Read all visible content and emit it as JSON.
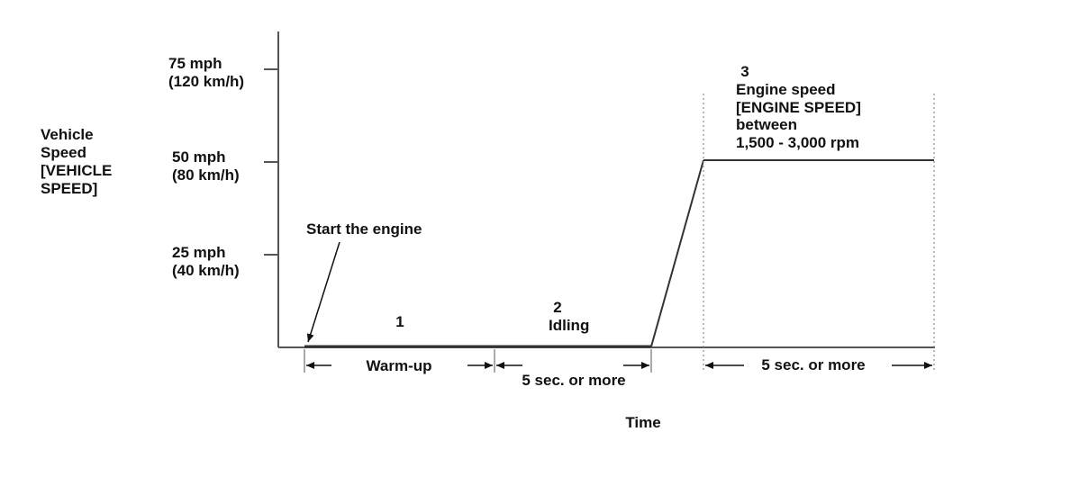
{
  "y_axis": {
    "title": [
      "Vehicle",
      "Speed",
      "[VEHICLE",
      "SPEED]"
    ],
    "ticks": [
      {
        "mph": "75 mph",
        "kmh": "(120 km/h)"
      },
      {
        "mph": "50 mph",
        "kmh": "(80 km/h)"
      },
      {
        "mph": "25 mph",
        "kmh": "(40 km/h)"
      }
    ]
  },
  "x_axis": {
    "title": "Time"
  },
  "annotations": {
    "start_engine": "Start the engine",
    "step1_number": "1",
    "step2_number": "2",
    "step2_label": "Idling",
    "step3_number": "3",
    "step3_lines": [
      "Engine speed",
      "[ENGINE SPEED]",
      "between",
      "1,500 - 3,000 rpm"
    ]
  },
  "durations": {
    "warmup": "Warm-up",
    "idle": "5 sec. or more",
    "hold": "5 sec. or more"
  },
  "colors": {
    "line": "#333333",
    "axis": "#555555",
    "dotted": "#888888"
  }
}
